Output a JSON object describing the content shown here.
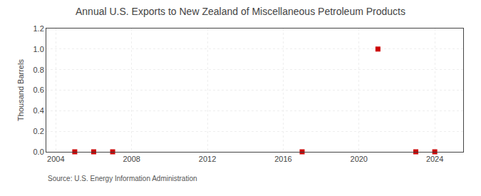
{
  "chart_data": {
    "type": "scatter",
    "title": "Annual U.S. Exports to New Zealand of Miscellaneous Petroleum Products",
    "ylabel": "Thousand Barrels",
    "source": "Source: U.S. Energy Information Administration",
    "x": [
      2005,
      2006,
      2007,
      2017,
      2021,
      2023,
      2024
    ],
    "values": [
      0.0,
      0.0,
      0.0,
      0.0,
      1.0,
      0.0,
      0.0
    ],
    "color": "#cc0000",
    "marker": "square",
    "xlim": [
      2003.5,
      2025.5
    ],
    "xticks": [
      2004,
      2008,
      2012,
      2016,
      2020,
      2024
    ],
    "ylim": [
      0.0,
      1.2
    ],
    "yticks": [
      {
        "value": 0.0,
        "label": "0.0"
      },
      0.2,
      0.4,
      0.6,
      0.8,
      {
        "value": 1.0,
        "label": "1.0"
      },
      1.2
    ],
    "grid": true
  }
}
